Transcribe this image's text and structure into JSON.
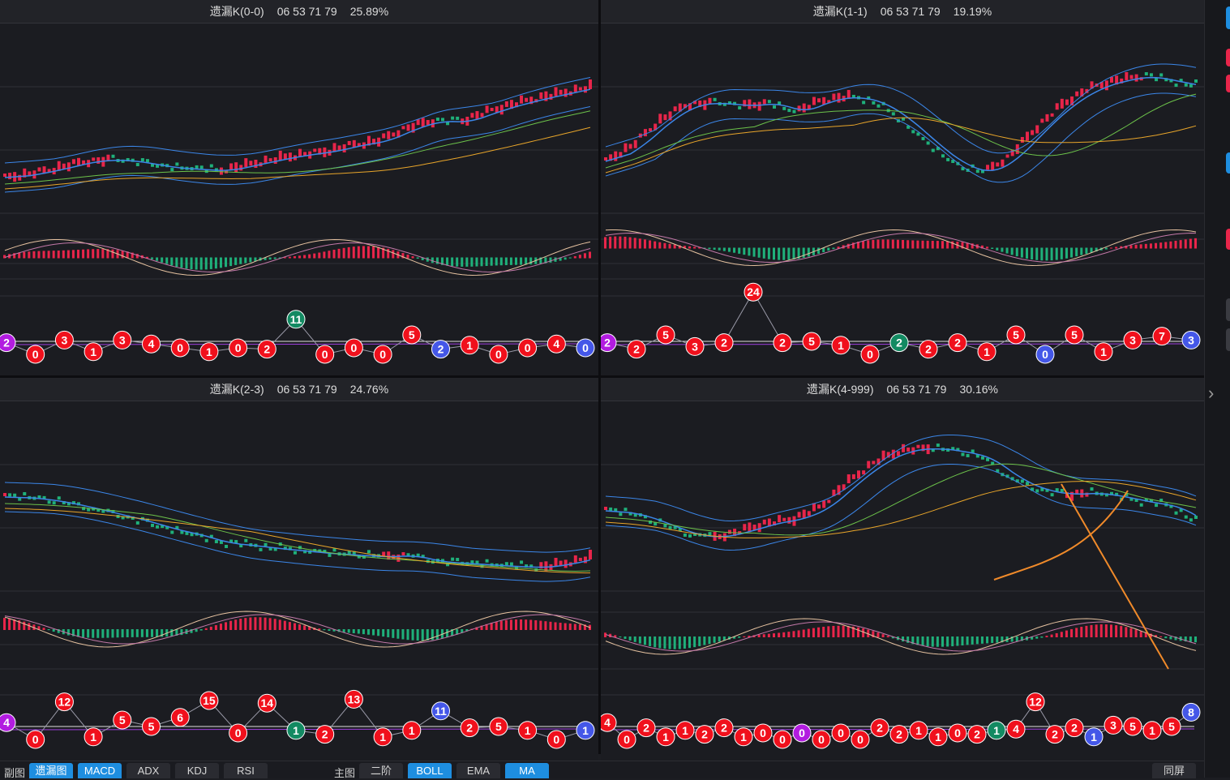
{
  "panels": [
    {
      "id": "p0",
      "title": "遗漏K(0-0)",
      "numbers": "06 53 71 79",
      "pct": "25.89%",
      "badges": [
        [
          "2",
          "pur"
        ],
        [
          "0",
          "red"
        ],
        [
          "3",
          "red"
        ],
        [
          "1",
          "red"
        ],
        [
          "3",
          "red"
        ],
        [
          "4",
          "red"
        ],
        [
          "0",
          "red"
        ],
        [
          "1",
          "red"
        ],
        [
          "0",
          "red"
        ],
        [
          "2",
          "red"
        ],
        [
          "11",
          "grn"
        ],
        [
          "0",
          "red"
        ],
        [
          "0",
          "red"
        ],
        [
          "0",
          "red"
        ],
        [
          "5",
          "red"
        ],
        [
          "2",
          "blu"
        ],
        [
          "1",
          "red"
        ],
        [
          "0",
          "red"
        ],
        [
          "0",
          "red"
        ],
        [
          "4",
          "red"
        ],
        [
          "0",
          "blu"
        ]
      ]
    },
    {
      "id": "p1",
      "title": "遗漏K(1-1)",
      "numbers": "06 53 71 79",
      "pct": "19.19%",
      "badges": [
        [
          "2",
          "pur"
        ],
        [
          "2",
          "red"
        ],
        [
          "5",
          "red"
        ],
        [
          "3",
          "red"
        ],
        [
          "2",
          "red"
        ],
        [
          "24",
          "red"
        ],
        [
          "2",
          "red"
        ],
        [
          "5",
          "red"
        ],
        [
          "1",
          "red"
        ],
        [
          "0",
          "red"
        ],
        [
          "2",
          "grn"
        ],
        [
          "2",
          "red"
        ],
        [
          "2",
          "red"
        ],
        [
          "1",
          "red"
        ],
        [
          "5",
          "red"
        ],
        [
          "0",
          "blu"
        ],
        [
          "5",
          "red"
        ],
        [
          "1",
          "red"
        ],
        [
          "3",
          "red"
        ],
        [
          "7",
          "red"
        ],
        [
          "3",
          "blu"
        ]
      ]
    },
    {
      "id": "p2",
      "title": "遗漏K(2-3)",
      "numbers": "06 53 71 79",
      "pct": "24.76%",
      "badges": [
        [
          "4",
          "pur"
        ],
        [
          "0",
          "red"
        ],
        [
          "12",
          "red"
        ],
        [
          "1",
          "red"
        ],
        [
          "5",
          "red"
        ],
        [
          "5",
          "red"
        ],
        [
          "6",
          "red"
        ],
        [
          "15",
          "red"
        ],
        [
          "0",
          "red"
        ],
        [
          "14",
          "red"
        ],
        [
          "1",
          "grn"
        ],
        [
          "2",
          "red"
        ],
        [
          "13",
          "red"
        ],
        [
          "1",
          "red"
        ],
        [
          "1",
          "red"
        ],
        [
          "11",
          "blu"
        ],
        [
          "2",
          "red"
        ],
        [
          "5",
          "red"
        ],
        [
          "1",
          "red"
        ],
        [
          "0",
          "red"
        ],
        [
          "1",
          "blu"
        ]
      ]
    },
    {
      "id": "p3",
      "title": "遗漏K(4-999)",
      "numbers": "06 53 71 79",
      "pct": "30.16%",
      "badges": [
        [
          "4",
          "red"
        ],
        [
          "0",
          "red"
        ],
        [
          "2",
          "red"
        ],
        [
          "1",
          "red"
        ],
        [
          "1",
          "red"
        ],
        [
          "2",
          "red"
        ],
        [
          "2",
          "red"
        ],
        [
          "1",
          "red"
        ],
        [
          "0",
          "red"
        ],
        [
          "0",
          "red"
        ],
        [
          "0",
          "pur"
        ],
        [
          "0",
          "red"
        ],
        [
          "0",
          "red"
        ],
        [
          "0",
          "red"
        ],
        [
          "2",
          "red"
        ],
        [
          "2",
          "red"
        ],
        [
          "1",
          "red"
        ],
        [
          "1",
          "red"
        ],
        [
          "0",
          "red"
        ],
        [
          "2",
          "red"
        ],
        [
          "1",
          "grn"
        ],
        [
          "4",
          "red"
        ],
        [
          "12",
          "red"
        ],
        [
          "2",
          "red"
        ],
        [
          "2",
          "red"
        ],
        [
          "1",
          "blu"
        ],
        [
          "3",
          "red"
        ],
        [
          "5",
          "red"
        ],
        [
          "1",
          "red"
        ],
        [
          "5",
          "red"
        ],
        [
          "8",
          "blu"
        ]
      ]
    }
  ],
  "bottom": {
    "sub_label": "副图",
    "sub_buttons": [
      "遗漏图",
      "MACD",
      "ADX",
      "KDJ",
      "RSI"
    ],
    "main_label": "主图",
    "main_buttons": [
      "二阶",
      "BOLL",
      "EMA",
      "MA"
    ],
    "sync_button": "同屏"
  },
  "colors": {
    "up": "#e8254a",
    "down": "#1fb07a",
    "ma_blue": "#3b86e8",
    "ma_yellow": "#e8a52a",
    "ma_green": "#6cc24a",
    "annot": "#f08a2a"
  }
}
